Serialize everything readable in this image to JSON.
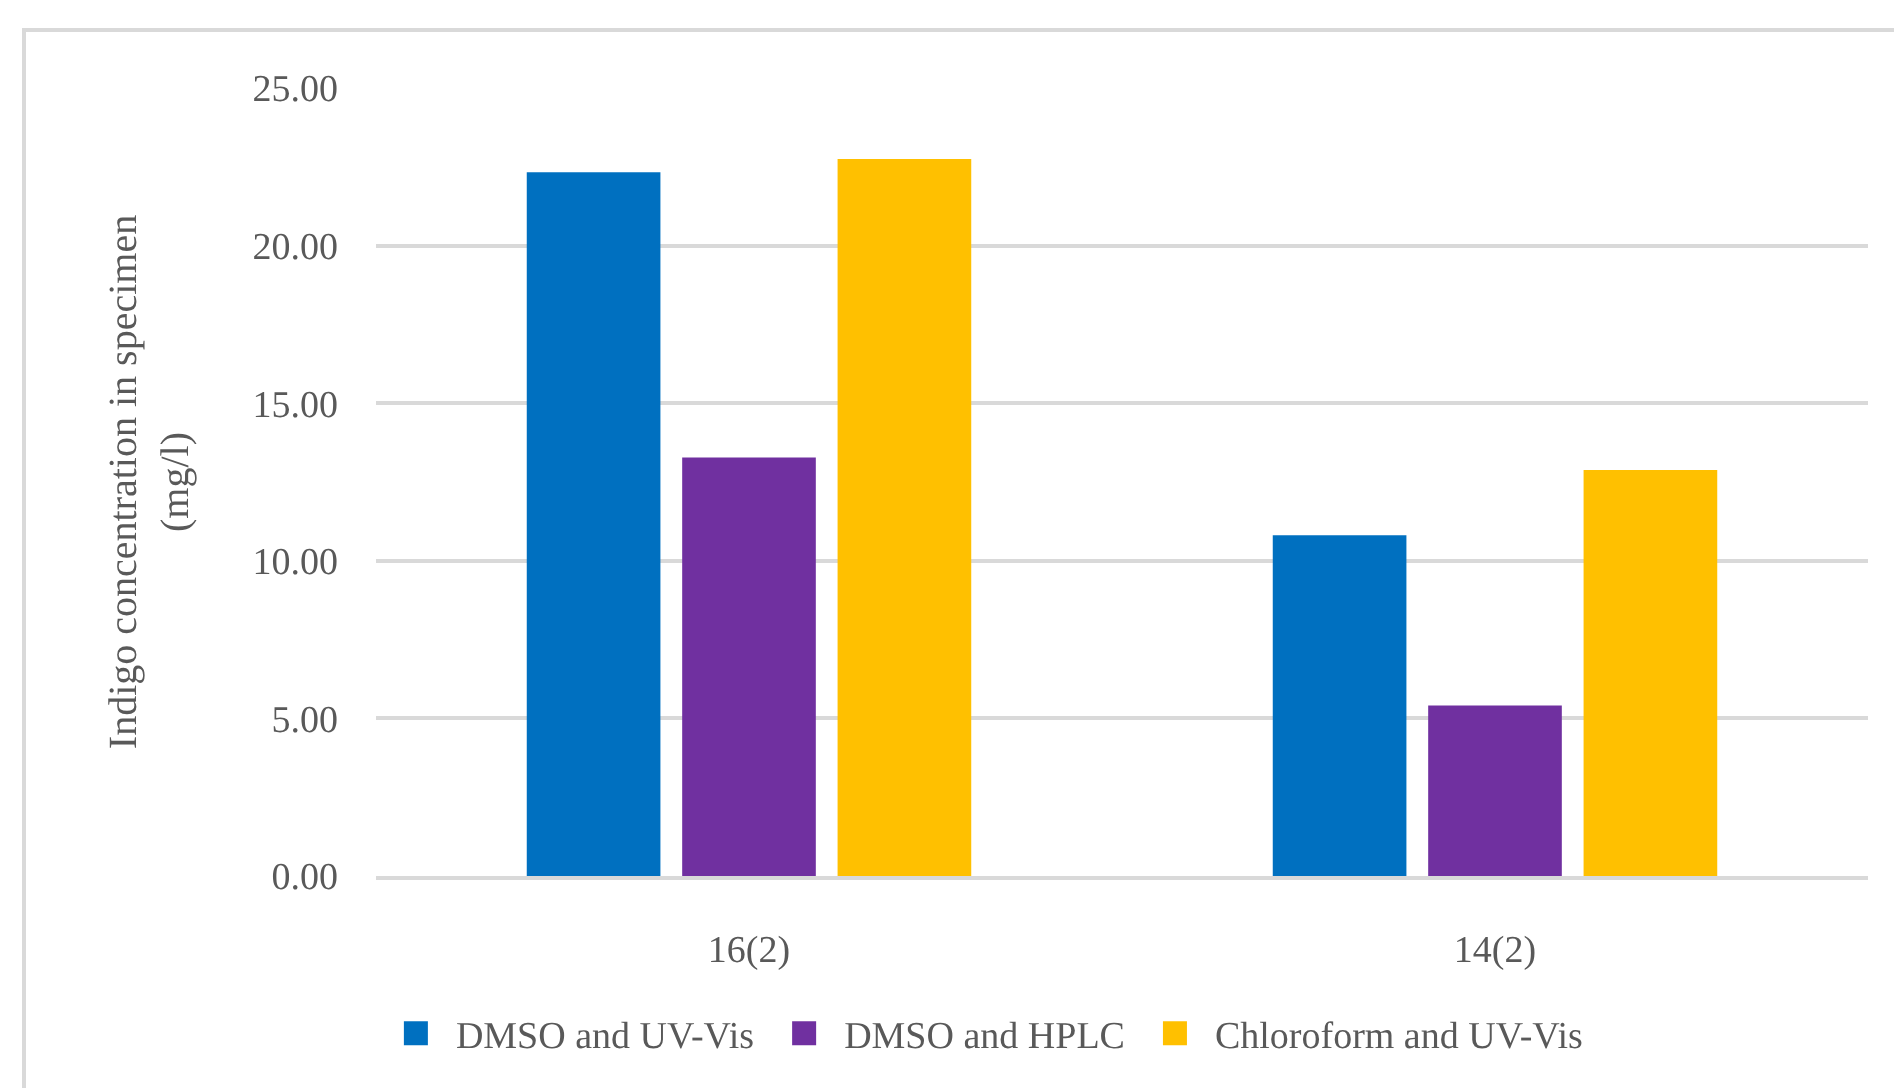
{
  "chart_data": {
    "type": "bar",
    "ylabel": "Indigo concentration in specimen\n(mg/l)",
    "categories": [
      "16(2)",
      "14(2)"
    ],
    "series": [
      {
        "name": "DMSO and UV-Vis",
        "color": "#0070c0",
        "values": [
          22.33,
          10.81
        ]
      },
      {
        "name": "DMSO and HPLC",
        "color": "#7030a0",
        "values": [
          13.28,
          5.41
        ]
      },
      {
        "name": "Chloroform and UV-Vis",
        "color": "#ffc000",
        "values": [
          22.75,
          12.88
        ]
      }
    ],
    "ylim": [
      0,
      25
    ],
    "yticks": [
      {
        "value": 0,
        "label": "0.00"
      },
      {
        "value": 5,
        "label": "5.00"
      },
      {
        "value": 10,
        "label": "10.00"
      },
      {
        "value": 15,
        "label": "15.00"
      },
      {
        "value": 20,
        "label": "20.00"
      },
      {
        "value": 25,
        "label": "25.00"
      }
    ],
    "grid": "y",
    "legend": "bottom"
  }
}
